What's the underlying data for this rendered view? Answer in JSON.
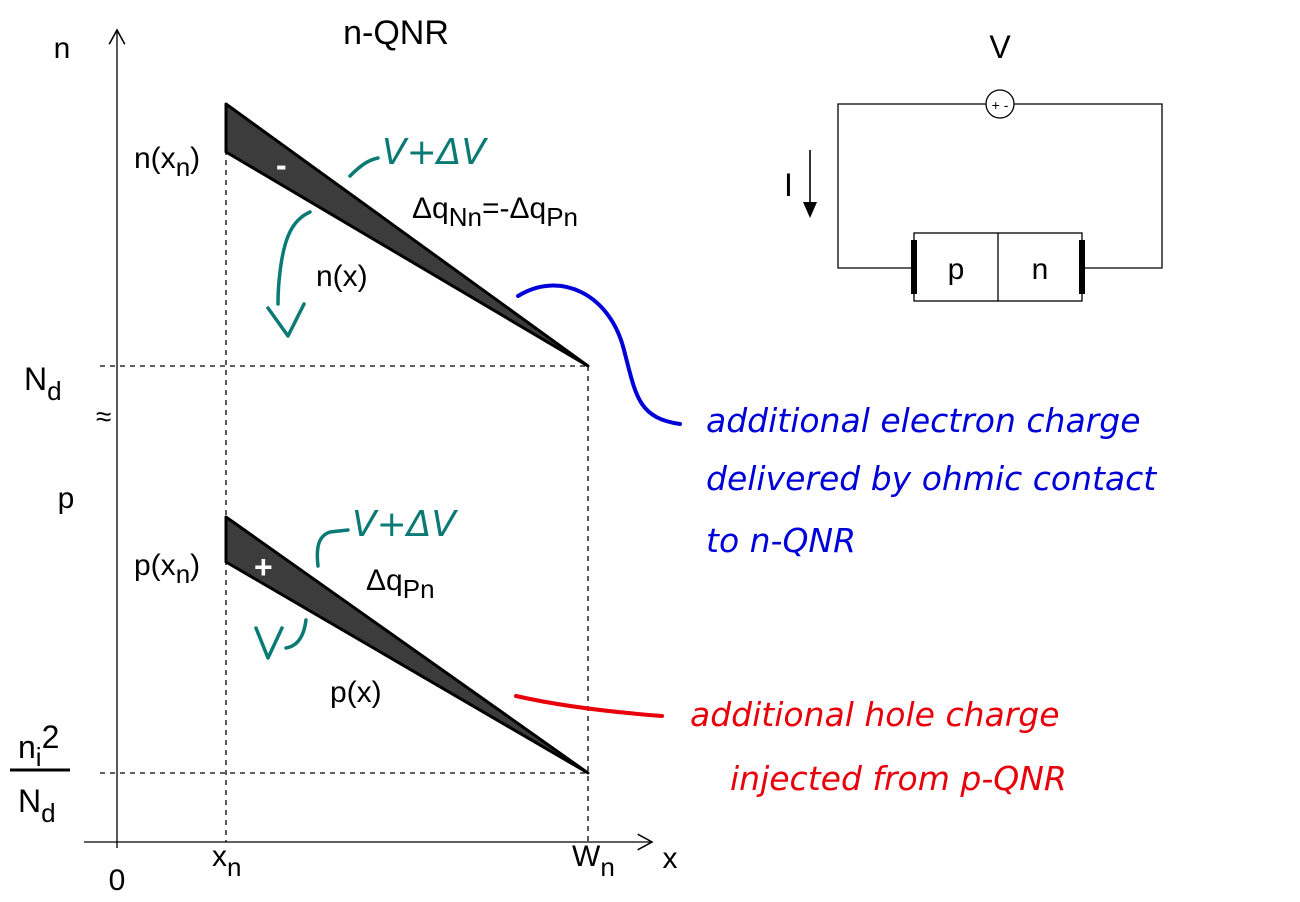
{
  "title": "n-QNR",
  "axes": {
    "y_top": "n",
    "y_bottom": "p",
    "x_label": "x",
    "origin": "0",
    "x_n": {
      "base": "x",
      "sub": "n"
    },
    "W_n": {
      "base": "W",
      "sub": "n"
    }
  },
  "levels": {
    "Nd": {
      "base": "N",
      "sub": "d"
    },
    "ni2_num": {
      "base": "n",
      "sub": "i",
      "sup": "2"
    },
    "ni2_den": {
      "base": "N",
      "sub": "d"
    },
    "axis_break": "≈"
  },
  "electron_panel": {
    "start_label": {
      "base": "n(x",
      "sub": "n",
      "close": ")"
    },
    "profile_label": "n(x)",
    "charge_sign": "-",
    "charge_label": {
      "prefix": "Δq",
      "sub1": "Nn",
      "mid": "=-Δq",
      "sub2": "Pn"
    },
    "hand_upper": "V+ΔV",
    "hand_lower": "V"
  },
  "hole_panel": {
    "start_label": {
      "base": "p(x",
      "sub": "n",
      "close": ")"
    },
    "profile_label": "p(x)",
    "charge_sign": "+",
    "charge_label": {
      "prefix": "Δq",
      "sub": "Pn"
    },
    "hand_upper": "V+ΔV",
    "hand_lower": "V"
  },
  "circuit": {
    "source_label": "V",
    "source_polarity": "+ -",
    "current_label": "I",
    "p_region": "p",
    "n_region": "n"
  },
  "annotations": {
    "electron_note": [
      "additional electron charge",
      "delivered by ohmic contact",
      "to n-QNR"
    ],
    "hole_note": [
      "additional hole charge",
      "injected from p-QNR"
    ]
  },
  "colors": {
    "fill": "#3c3c3c",
    "teal": "#0b7a75",
    "blue": "#0000d8",
    "red": "#e8000b"
  }
}
